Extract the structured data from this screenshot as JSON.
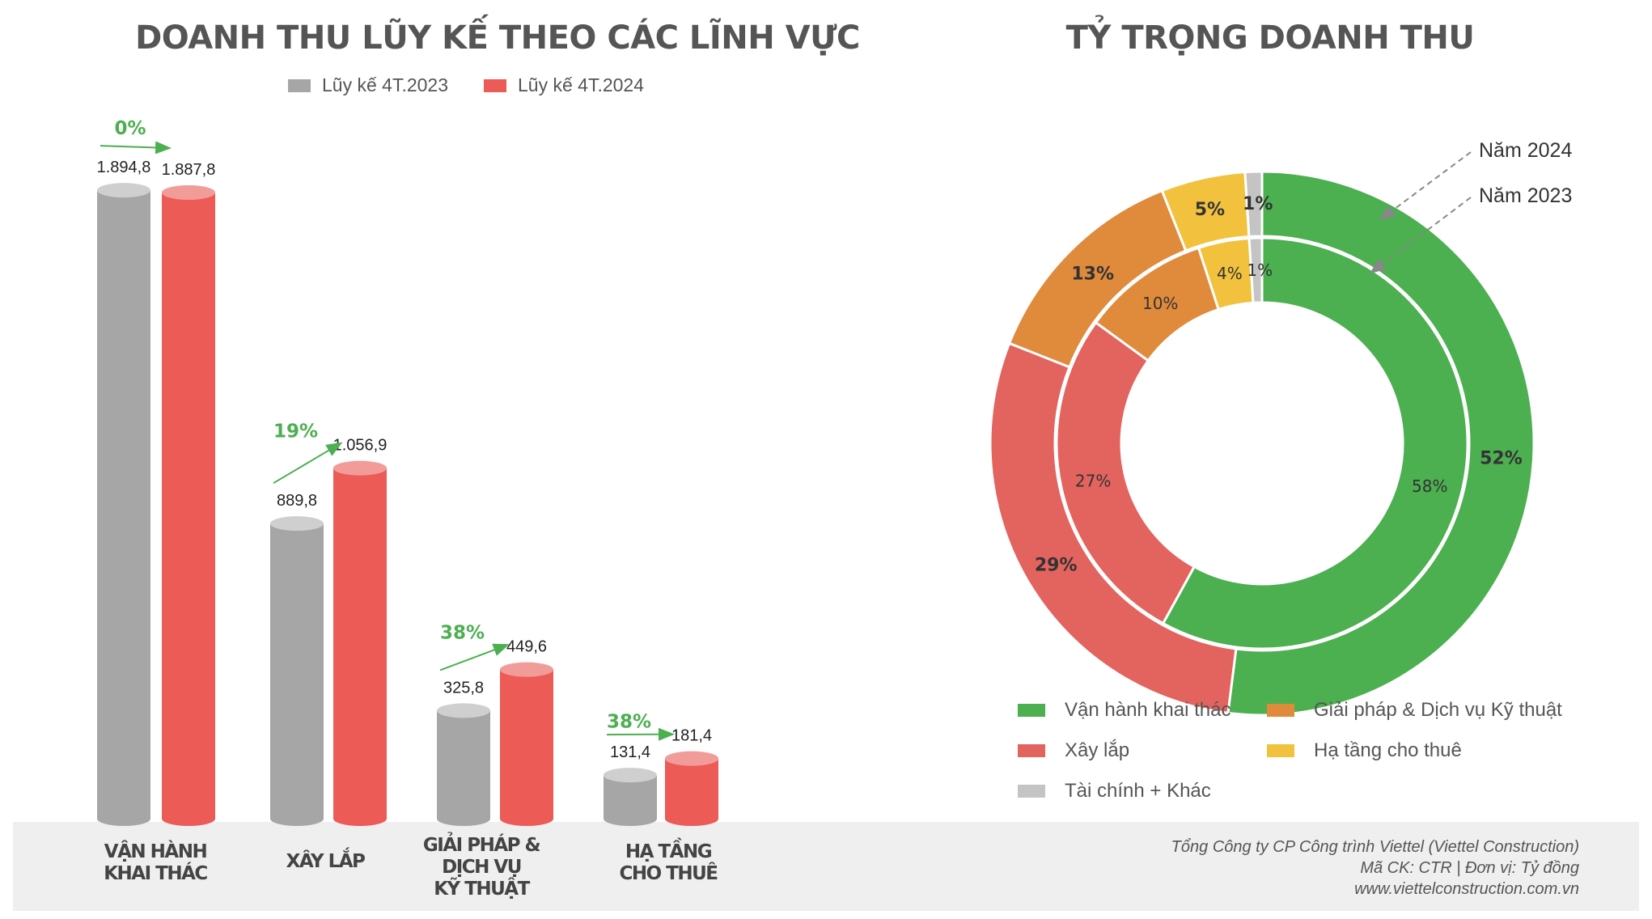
{
  "bar_title": "DOANH THU LŨY KẾ THEO CÁC LĨNH VỰC",
  "pie_title": "TỶ TRỌNG DOANH THU",
  "footer": {
    "line1": "Tổng Công ty CP Công trình Viettel (Viettel Construction)",
    "line2": "Mã CK: CTR  |  Đơn vị: Tỷ đồng",
    "line3": "www.viettelconstruction.com.vn"
  },
  "colors": {
    "bar_2023": "#a6a6a6",
    "bar_2023_top": "#cfcfcf",
    "bar_2024": "#ec5b56",
    "bar_2024_top": "#f29c99",
    "growth_green": "#4caf50",
    "band": "#efefef"
  },
  "chart_data": [
    {
      "type": "bar",
      "title": "DOANH THU LŨY KẾ THEO CÁC LĨNH VỰC",
      "categories": [
        "VẬN HÀNH\nKHAI THÁC",
        "XÂY LẮP",
        "GIẢI PHÁP &\nDỊCH VỤ\nKỸ THUẬT",
        "HẠ TẦNG\nCHO THUÊ"
      ],
      "series": [
        {
          "name": "Lũy kế 4T.2023",
          "values": [
            1894.8,
            889.8,
            325.8,
            131.4
          ],
          "labels": [
            "1.894,8",
            "889,8",
            "325,8",
            "131,4"
          ]
        },
        {
          "name": "Lũy kế 4T.2024",
          "values": [
            1887.8,
            1056.9,
            449.6,
            181.4
          ],
          "labels": [
            "1.887,8",
            "1.056,9",
            "449,6",
            "181,4"
          ]
        }
      ],
      "growth_labels": [
        "0%",
        "19%",
        "38%",
        "38%"
      ],
      "ylim": [
        0,
        2000
      ],
      "legend_position": "top-center",
      "grid": false
    },
    {
      "type": "pie",
      "title": "TỶ TRỌNG DOANH THU",
      "categories": [
        "Vận hành khai thác",
        "Xây lắp",
        "Giải pháp & Dịch vụ Kỹ thuật",
        "Hạ tầng cho thuê",
        "Tài chính + Khác"
      ],
      "colors": [
        "#4caf50",
        "#e3635e",
        "#e08a3c",
        "#f2c23e",
        "#c4c4c4"
      ],
      "series": [
        {
          "name": "Năm 2024",
          "values": [
            52,
            29,
            13,
            5,
            1
          ],
          "labels": [
            "52%",
            "29%",
            "13%",
            "5%",
            "1%"
          ]
        },
        {
          "name": "Năm 2023",
          "values": [
            58,
            27,
            10,
            4,
            1
          ],
          "labels": [
            "58%",
            "27%",
            "10%",
            "4%",
            "1%"
          ]
        }
      ],
      "legend_position": "bottom"
    }
  ]
}
